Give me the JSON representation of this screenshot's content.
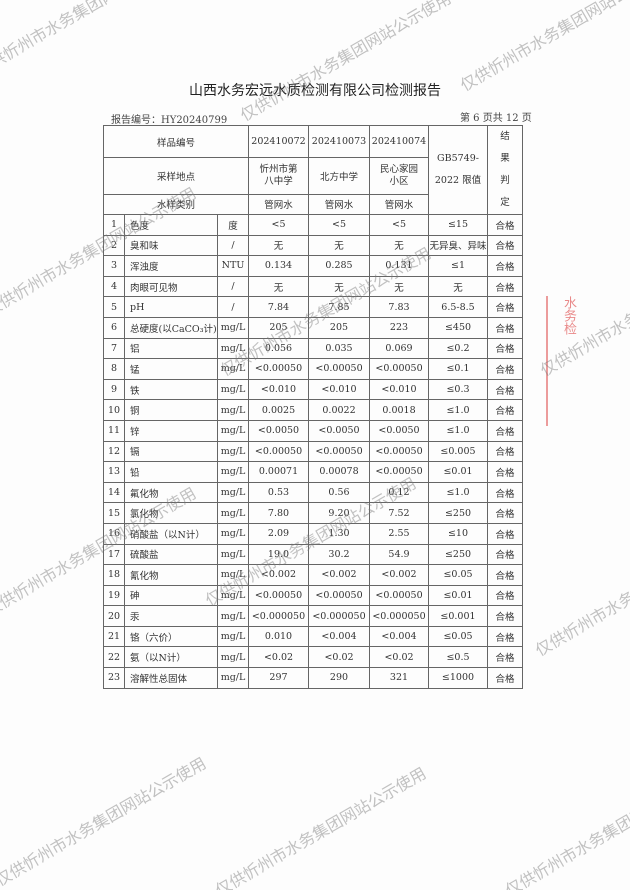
{
  "title": "山西水务宏远水质检测有限公司检测报告",
  "report_no": "报告编号：HY20240799",
  "page_info": "第 6 页共 12 页",
  "header": {
    "sample_no_label": "样品编号",
    "site_label": "采样地点",
    "type_label": "水样类别",
    "limit_label": "GB5749-2022 限值",
    "result_label": "结果判定",
    "samples": [
      {
        "no": "202410072",
        "site": "忻州市第八中学",
        "type": "管网水"
      },
      {
        "no": "202410073",
        "site": "北方中学",
        "type": "管网水"
      },
      {
        "no": "202410074",
        "site": "民心家园小区",
        "type": "管网水"
      }
    ]
  },
  "rows": [
    [
      "1",
      "色度",
      "度",
      "<5",
      "<5",
      "<5",
      "≤15",
      "合格"
    ],
    [
      "2",
      "臭和味",
      "/",
      "无",
      "无",
      "无",
      "无异臭、异味",
      "合格"
    ],
    [
      "3",
      "浑浊度",
      "NTU",
      "0.134",
      "0.285",
      "0.131",
      "≤1",
      "合格"
    ],
    [
      "4",
      "肉眼可见物",
      "/",
      "无",
      "无",
      "无",
      "无",
      "合格"
    ],
    [
      "5",
      "pH",
      "/",
      "7.84",
      "7.85",
      "7.83",
      "6.5-8.5",
      "合格"
    ],
    [
      "6",
      "总硬度(以CaCO₃计)",
      "mg/L",
      "205",
      "205",
      "223",
      "≤450",
      "合格"
    ],
    [
      "7",
      "铝",
      "mg/L",
      "0.056",
      "0.035",
      "0.069",
      "≤0.2",
      "合格"
    ],
    [
      "8",
      "锰",
      "mg/L",
      "<0.00050",
      "<0.00050",
      "<0.00050",
      "≤0.1",
      "合格"
    ],
    [
      "9",
      "铁",
      "mg/L",
      "<0.010",
      "<0.010",
      "<0.010",
      "≤0.3",
      "合格"
    ],
    [
      "10",
      "铜",
      "mg/L",
      "0.0025",
      "0.0022",
      "0.0018",
      "≤1.0",
      "合格"
    ],
    [
      "11",
      "锌",
      "mg/L",
      "<0.0050",
      "<0.0050",
      "<0.0050",
      "≤1.0",
      "合格"
    ],
    [
      "12",
      "镉",
      "mg/L",
      "<0.00050",
      "<0.00050",
      "<0.00050",
      "≤0.005",
      "合格"
    ],
    [
      "13",
      "铅",
      "mg/L",
      "0.00071",
      "0.00078",
      "<0.00050",
      "≤0.01",
      "合格"
    ],
    [
      "14",
      "氟化物",
      "mg/L",
      "0.53",
      "0.56",
      "0.12",
      "≤1.0",
      "合格"
    ],
    [
      "15",
      "氯化物",
      "mg/L",
      "7.80",
      "9.20",
      "7.52",
      "≤250",
      "合格"
    ],
    [
      "16",
      "硝酸盐（以N计）",
      "mg/L",
      "2.09",
      "1.30",
      "2.55",
      "≤10",
      "合格"
    ],
    [
      "17",
      "硫酸盐",
      "mg/L",
      "19.0",
      "30.2",
      "54.9",
      "≤250",
      "合格"
    ],
    [
      "18",
      "氰化物",
      "mg/L",
      "<0.002",
      "<0.002",
      "<0.002",
      "≤0.05",
      "合格"
    ],
    [
      "19",
      "砷",
      "mg/L",
      "<0.00050",
      "<0.00050",
      "<0.00050",
      "≤0.01",
      "合格"
    ],
    [
      "20",
      "汞",
      "mg/L",
      "<0.000050",
      "<0.000050",
      "<0.000050",
      "≤0.001",
      "合格"
    ],
    [
      "21",
      "铬（六价）",
      "mg/L",
      "0.010",
      "<0.004",
      "<0.004",
      "≤0.05",
      "合格"
    ],
    [
      "22",
      "氨（以N计）",
      "mg/L",
      "<0.02",
      "<0.02",
      "<0.02",
      "≤0.5",
      "合格"
    ],
    [
      "23",
      "溶解性总固体",
      "mg/L",
      "297",
      "290",
      "321",
      "≤1000",
      "合格"
    ]
  ],
  "watermark": "仅供忻州市水务集团网站公示使用",
  "stamp_text": "水务检"
}
